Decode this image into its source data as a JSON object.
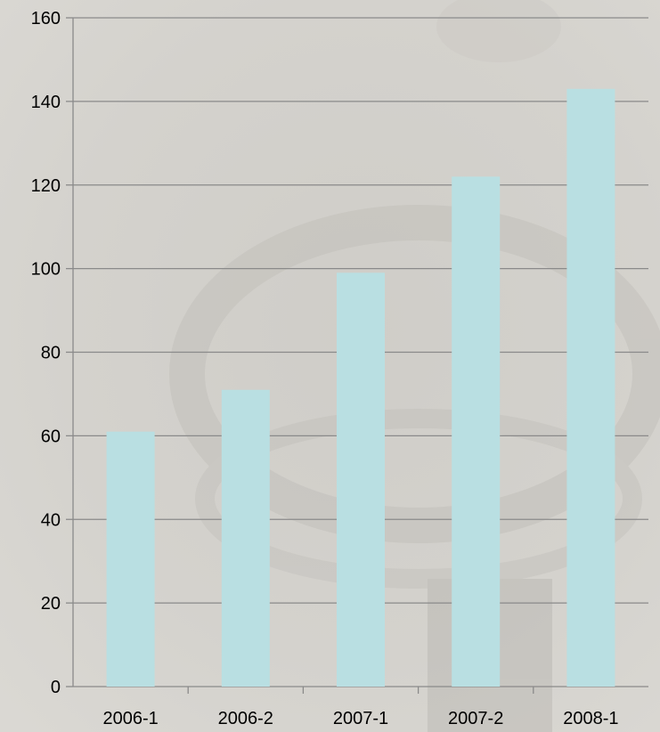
{
  "chart_data": {
    "type": "bar",
    "categories": [
      "2006-1",
      "2006-2",
      "2007-1",
      "2007-2",
      "2008-1"
    ],
    "values": [
      61,
      71,
      99,
      122,
      143
    ],
    "ylim": [
      0,
      160
    ],
    "yticks": [
      0,
      20,
      40,
      60,
      80,
      100,
      120,
      140,
      160
    ],
    "grid": true,
    "legend": "none",
    "colors": {
      "bar": "#b9dfe2",
      "grid": "#8a8a8a",
      "axis": "#8a8a8a",
      "background": "#d6d4cf"
    }
  }
}
